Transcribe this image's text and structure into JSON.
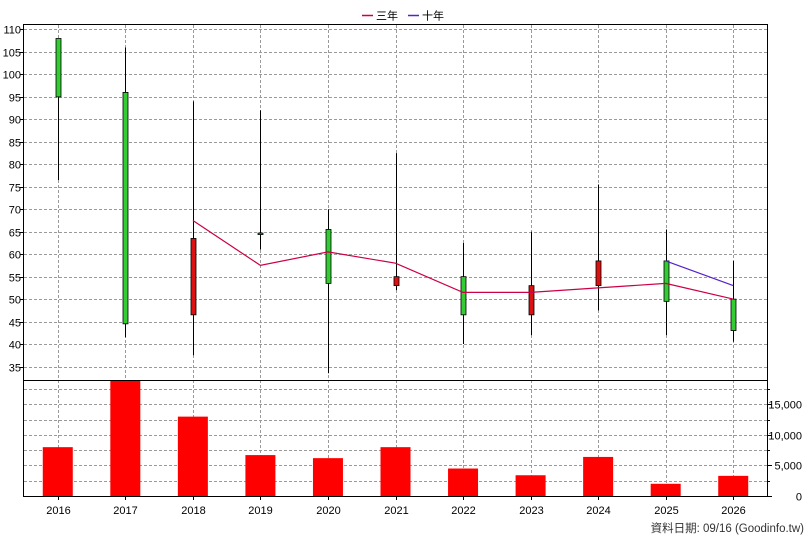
{
  "chart_data": [
    {
      "type": "candlestick",
      "legend_position": "top-center",
      "categories": [
        "2016",
        "2017",
        "2018",
        "2019",
        "2020",
        "2021",
        "2022",
        "2023",
        "2024",
        "2025",
        "2026"
      ],
      "y_ticks": [
        35,
        40,
        45,
        50,
        55,
        60,
        65,
        70,
        75,
        80,
        85,
        90,
        95,
        100,
        105,
        110
      ],
      "ylim": [
        32,
        111
      ],
      "grid": true,
      "candles": [
        {
          "open": 95,
          "high": 108,
          "low": 76.5,
          "close": 108,
          "up": true
        },
        {
          "open": 44.5,
          "high": 106,
          "low": 41.5,
          "close": 96,
          "up": true
        },
        {
          "open": 63.5,
          "high": 94,
          "low": 37.5,
          "close": 46.5,
          "up": false
        },
        {
          "open": 64.5,
          "high": 92,
          "low": 61,
          "close": 64.7,
          "up": true
        },
        {
          "open": 53.5,
          "high": 70,
          "low": 33.5,
          "close": 65.5,
          "up": true
        },
        {
          "open": 55,
          "high": 82.5,
          "low": 52,
          "close": 53,
          "up": false
        },
        {
          "open": 46.5,
          "high": 62.5,
          "low": 40,
          "close": 55,
          "up": true
        },
        {
          "open": 53,
          "high": 65,
          "low": 42,
          "close": 46.5,
          "up": false
        },
        {
          "open": 58.5,
          "high": 75.5,
          "low": 47.5,
          "close": 53,
          "up": false
        },
        {
          "open": 49.5,
          "high": 65.5,
          "low": 42,
          "close": 58.5,
          "up": true
        },
        {
          "open": 43,
          "high": 58.5,
          "low": 40.5,
          "close": 50,
          "up": true
        }
      ],
      "series": [
        {
          "name": "三年",
          "color": "#cc0044",
          "points": [
            [
              2,
              67.5
            ],
            [
              3,
              57.5
            ],
            [
              4,
              60.5
            ],
            [
              5,
              58
            ],
            [
              6,
              51.5
            ],
            [
              7,
              51.5
            ],
            [
              8,
              52.5
            ],
            [
              9,
              53.5
            ],
            [
              10,
              50
            ]
          ]
        },
        {
          "name": "十年",
          "color": "#5522cc",
          "points": [
            [
              9,
              58.5
            ],
            [
              10,
              53
            ]
          ]
        }
      ]
    },
    {
      "type": "bar",
      "categories": [
        "2016",
        "2017",
        "2018",
        "2019",
        "2020",
        "2021",
        "2022",
        "2023",
        "2024",
        "2025",
        "2026"
      ],
      "values": [
        8000,
        19000,
        13000,
        6700,
        6200,
        8000,
        4500,
        3400,
        6400,
        2000,
        3300
      ],
      "y_ticks": [
        0,
        5000,
        10000,
        15000
      ],
      "y_tick_labels": [
        "0",
        "5,000",
        "10,000",
        "15,000"
      ],
      "ylim": [
        0,
        19000
      ],
      "color": "#ff0000"
    }
  ],
  "footer": {
    "date_text": "資料日期: 09/16  (Goodinfo.tw)"
  },
  "colors": {
    "up": "#33cc33",
    "down": "#dd1111",
    "bar": "#ff0000"
  }
}
